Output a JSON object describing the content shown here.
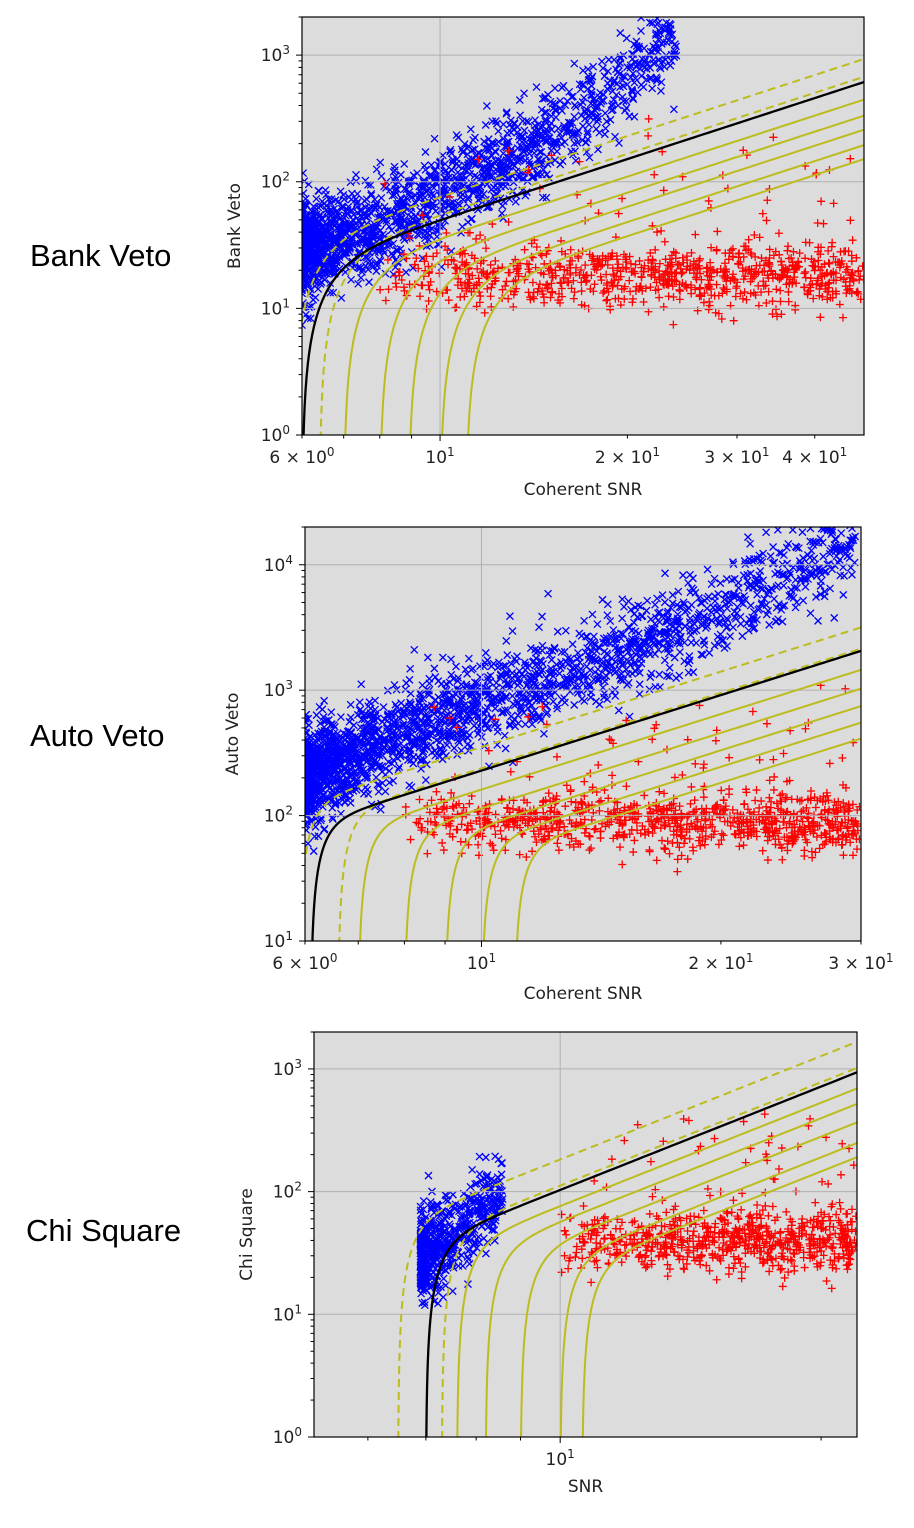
{
  "chart_data": [
    {
      "type": "scatter",
      "panel_label": "Bank Veto",
      "xlabel": "Coherent SNR",
      "ylabel": "Bank Veto",
      "xscale": "log",
      "yscale": "log",
      "xlim": [
        6,
        48
      ],
      "ylim": [
        1,
        2000
      ],
      "grid": true,
      "xticks": [
        {
          "value": 6,
          "base": "6 × 10",
          "exp": "0"
        },
        {
          "value": 10,
          "base": "10",
          "exp": "1"
        },
        {
          "value": 20,
          "base": "2 × 10",
          "exp": "1"
        },
        {
          "value": 30,
          "base": "3 × 10",
          "exp": "1"
        },
        {
          "value": 40,
          "base": "4 × 10",
          "exp": "1"
        }
      ],
      "yticks": [
        {
          "value": 1,
          "base": "10",
          "exp": "0"
        },
        {
          "value": 10,
          "base": "10",
          "exp": "1"
        },
        {
          "value": 100,
          "base": "10",
          "exp": "2"
        },
        {
          "value": 1000,
          "base": "10",
          "exp": "3"
        }
      ],
      "cut": {
        "x0": 6.0,
        "y0": 2.5,
        "slope": 1.6,
        "a": 8.0,
        "y_at_x0": 22
      },
      "yellow_solid_x0": [
        7.0,
        8.0,
        8.9,
        10.0,
        11.0
      ],
      "yellow_dashed_x0": [
        6.4,
        5.8
      ],
      "series": [
        {
          "marker": "x",
          "color": "#0000ff",
          "x_range": [
            6.0,
            24.0
          ],
          "core": [
            [
              6.0,
              30
            ],
            [
              8.0,
              45
            ],
            [
              10.0,
              80
            ],
            [
              14.0,
              180
            ],
            [
              20.0,
              650
            ],
            [
              24.0,
              1500
            ]
          ],
          "n": 1700
        },
        {
          "marker": "+",
          "color": "#ff0000",
          "x_range": [
            8.0,
            48.0
          ],
          "y_center": 18,
          "n": 850
        }
      ]
    },
    {
      "type": "scatter",
      "panel_label": "Auto Veto",
      "xlabel": "Coherent SNR",
      "ylabel": "Auto Veto",
      "xscale": "log",
      "yscale": "log",
      "xlim": [
        6,
        30
      ],
      "ylim": [
        10,
        20000
      ],
      "grid": true,
      "xticks": [
        {
          "value": 6,
          "base": "6 × 10",
          "exp": "0"
        },
        {
          "value": 10,
          "base": "10",
          "exp": "1"
        },
        {
          "value": 20,
          "base": "2 × 10",
          "exp": "1"
        },
        {
          "value": 30,
          "base": "3 × 10",
          "exp": "1"
        }
      ],
      "yticks": [
        {
          "value": 10,
          "base": "10",
          "exp": "1"
        },
        {
          "value": 100,
          "base": "10",
          "exp": "2"
        },
        {
          "value": 1000,
          "base": "10",
          "exp": "3"
        },
        {
          "value": 10000,
          "base": "10",
          "exp": "4"
        }
      ],
      "cut": {
        "x0": 6.1,
        "y0": 10,
        "slope": 2.0,
        "a": 25.0,
        "y_at_x0": 85
      },
      "yellow_solid_x0": [
        7.0,
        8.0,
        9.0,
        10.0,
        11.0
      ],
      "yellow_dashed_x0": [
        6.6,
        5.9
      ],
      "series": [
        {
          "marker": "x",
          "color": "#0000ff",
          "x_range": [
            6.0,
            29.5
          ],
          "core": [
            [
              6.0,
              200
            ],
            [
              8.0,
              450
            ],
            [
              10.0,
              800
            ],
            [
              15.0,
              2000
            ],
            [
              20.0,
              4500
            ],
            [
              29.0,
              15000
            ]
          ],
          "n": 2200
        },
        {
          "marker": "+",
          "color": "#ff0000",
          "x_range": [
            8.0,
            30.0
          ],
          "y_center": 90,
          "n": 900
        }
      ]
    },
    {
      "type": "scatter",
      "panel_label": "Chi Square",
      "xlabel": "SNR",
      "ylabel": "Chi Square",
      "xscale": "log",
      "yscale": "log",
      "xlim": [
        5.2,
        22
      ],
      "ylim": [
        1,
        2000
      ],
      "grid": true,
      "xticks": [
        {
          "value": 10,
          "base": "10",
          "exp": "1"
        }
      ],
      "yticks": [
        {
          "value": 1,
          "base": "10",
          "exp": "0"
        },
        {
          "value": 10,
          "base": "10",
          "exp": "1"
        },
        {
          "value": 100,
          "base": "10",
          "exp": "2"
        },
        {
          "value": 1000,
          "base": "10",
          "exp": "3"
        }
      ],
      "cut": {
        "x0": 7.0,
        "y0": 1,
        "slope": 2.8,
        "a": 22.0,
        "y_at_x0": 38
      },
      "yellow_solid_x0": [
        7.6,
        8.2,
        9.0,
        10.0,
        10.6
      ],
      "yellow_dashed_x0": [
        7.3,
        6.5
      ],
      "series": [
        {
          "marker": "x",
          "color": "#0000ff",
          "x_range": [
            6.9,
            8.6
          ],
          "core": [
            [
              6.9,
              30
            ],
            [
              7.5,
              40
            ],
            [
              8.0,
              60
            ],
            [
              8.6,
              110
            ]
          ],
          "n": 550
        },
        {
          "marker": "+",
          "color": "#ff0000",
          "x_range": [
            10.0,
            22.0
          ],
          "y_center": 40,
          "n": 700
        }
      ]
    }
  ]
}
